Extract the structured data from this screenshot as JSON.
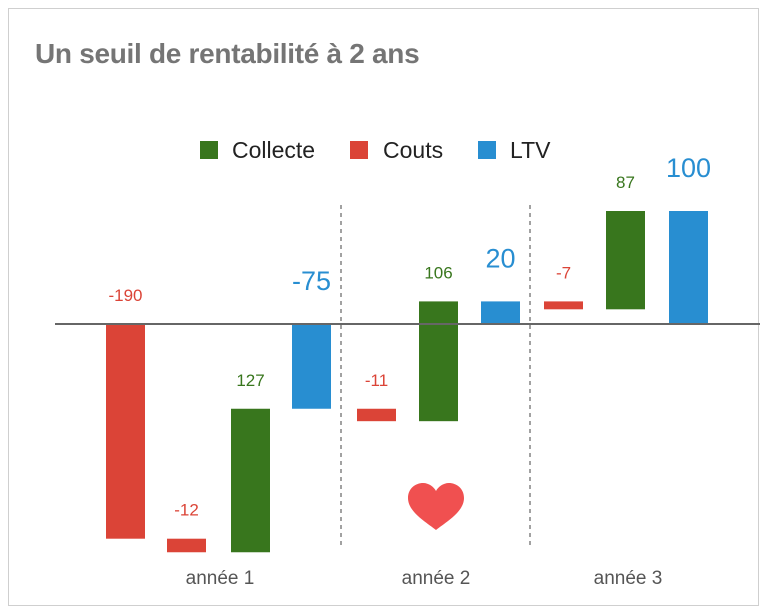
{
  "title": "Un seuil de rentabilité à 2 ans",
  "chart_data": {
    "type": "waterfall",
    "title": "Un seuil de rentabilité à 2 ans",
    "legend": {
      "placement": "top-center",
      "entries": [
        {
          "name": "Collecte",
          "color": "#38761d"
        },
        {
          "name": "Couts",
          "color": "#db4437"
        },
        {
          "name": "LTV",
          "color": "#288ed1"
        }
      ]
    },
    "colors": {
      "Collecte": "#38761d",
      "Couts": "#db4437",
      "LTV": "#288ed1",
      "heart": "#f05050"
    },
    "categories": [
      "année 1",
      "année 2",
      "année 3"
    ],
    "steps": [
      {
        "group": 0,
        "series": "Couts",
        "value": -190,
        "label": "-190"
      },
      {
        "group": 0,
        "series": "Couts",
        "value": -12,
        "label": "-12"
      },
      {
        "group": 0,
        "series": "Collecte",
        "value": 127,
        "label": "127"
      },
      {
        "group": 0,
        "series": "LTV",
        "value": -75,
        "label": "-75",
        "total": true
      },
      {
        "group": 1,
        "series": "Couts",
        "value": -11,
        "label": "-11"
      },
      {
        "group": 1,
        "series": "Collecte",
        "value": 106,
        "label": "106"
      },
      {
        "group": 1,
        "series": "LTV",
        "value": 20,
        "label": "20",
        "total": true
      },
      {
        "group": 2,
        "series": "Couts",
        "value": -7,
        "label": "-7"
      },
      {
        "group": 2,
        "series": "Collecte",
        "value": 87,
        "label": "87"
      },
      {
        "group": 2,
        "series": "LTV",
        "value": 100,
        "label": "100",
        "total": true
      }
    ],
    "ylim": [
      -202,
      100
    ],
    "grid": false,
    "annotations": [
      {
        "type": "heart-icon",
        "group": 1
      }
    ]
  }
}
